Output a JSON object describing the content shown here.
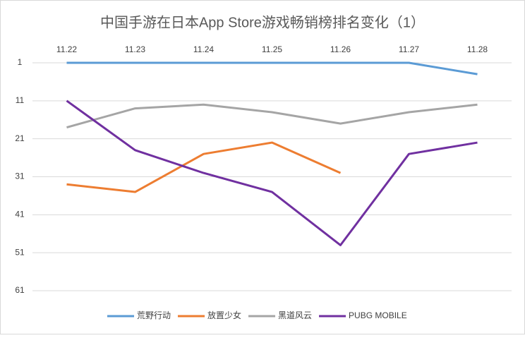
{
  "chart_data": {
    "type": "line",
    "title": "中国手游在日本App Store游戏畅销榜排名变化（1）",
    "categories": [
      "11.22",
      "11.23",
      "11.24",
      "11.25",
      "11.26",
      "11.27",
      "11.28"
    ],
    "series": [
      {
        "name": "荒野行动",
        "color": "#5b9bd5",
        "values": [
          1,
          1,
          1,
          1,
          1,
          1,
          4
        ]
      },
      {
        "name": "放置少女",
        "color": "#ed7d31",
        "values": [
          33,
          35,
          25,
          22,
          30,
          null,
          null
        ]
      },
      {
        "name": "黑道风云",
        "color": "#a5a5a5",
        "values": [
          18,
          13,
          12,
          14,
          17,
          14,
          12
        ]
      },
      {
        "name": "PUBG MOBILE",
        "color": "#7030a0",
        "values": [
          11,
          24,
          30,
          35,
          49,
          25,
          22
        ]
      }
    ],
    "ylim": [
      1,
      61
    ],
    "yticks": [
      1,
      11,
      21,
      31,
      41,
      51,
      61
    ],
    "y_inverted": true,
    "grid": true,
    "legend": "bottom"
  }
}
